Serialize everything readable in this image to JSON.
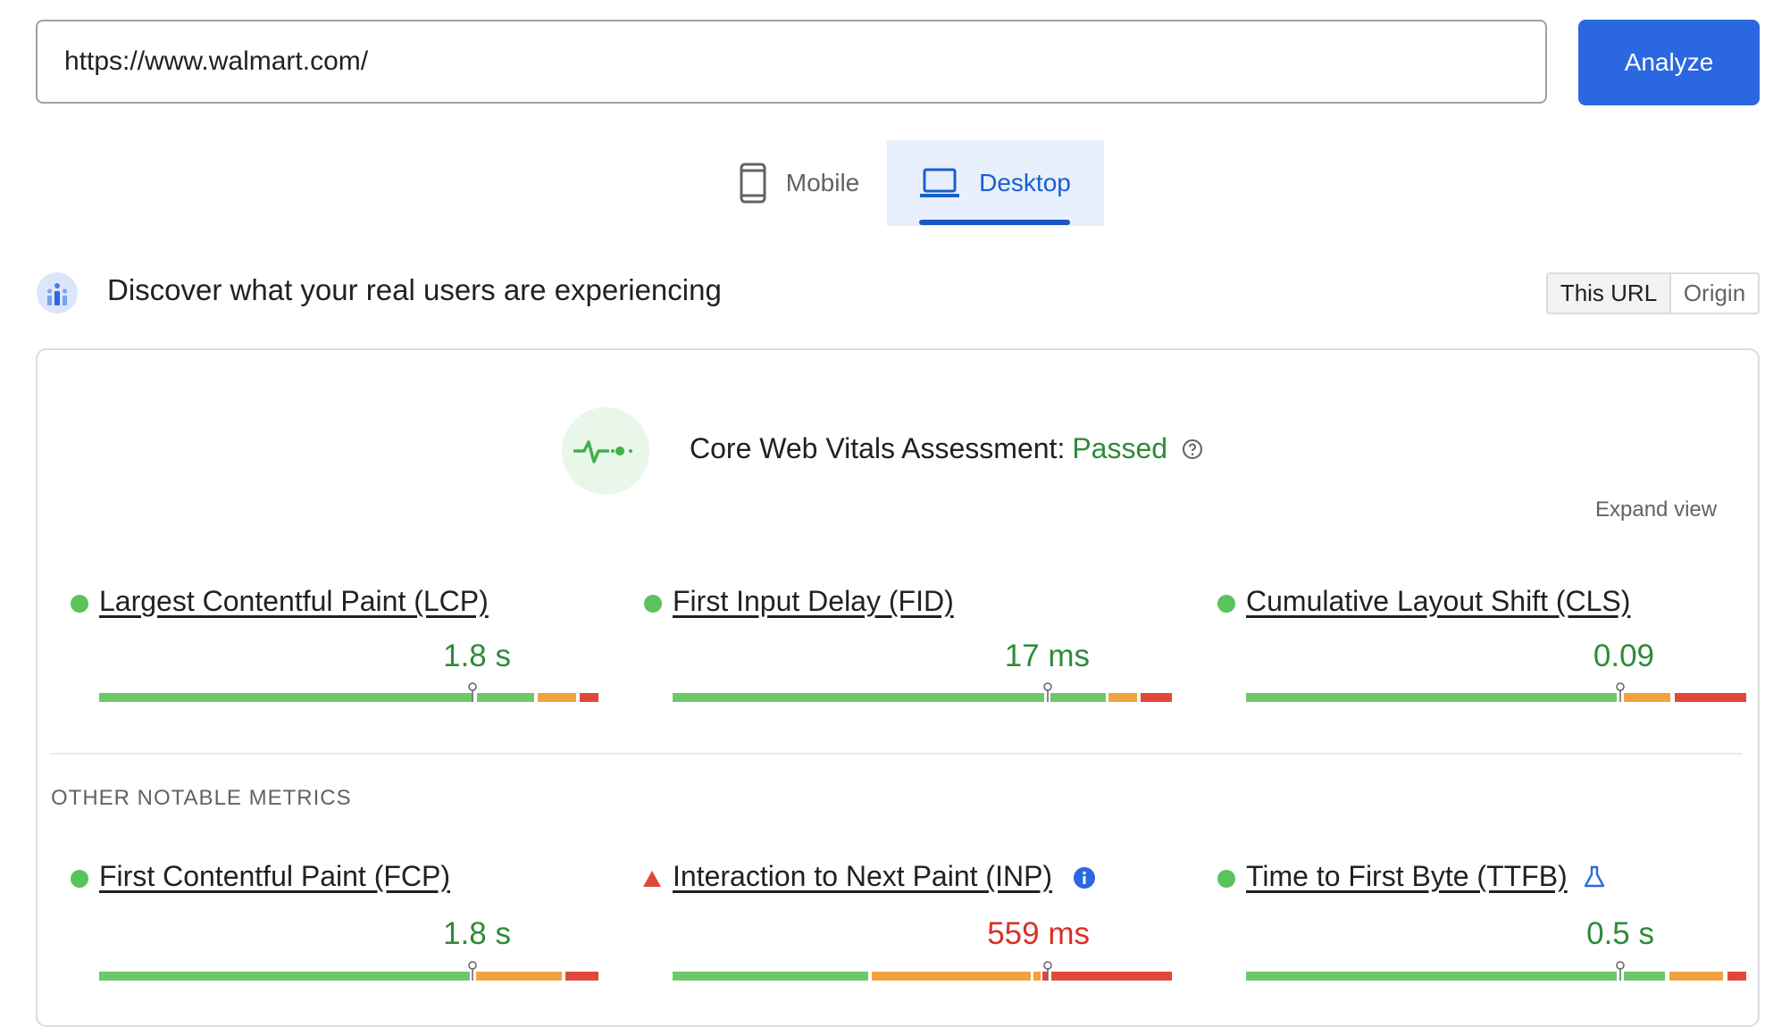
{
  "url_bar": {
    "value": "https://www.walmart.com/",
    "analyze_label": "Analyze"
  },
  "tabs": {
    "mobile": "Mobile",
    "desktop": "Desktop",
    "selected": "Desktop"
  },
  "field_data": {
    "title": "Discover what your real users are experiencing",
    "scope_toggle": {
      "this_url": "This URL",
      "origin": "Origin",
      "selected": "This URL"
    }
  },
  "assessment": {
    "label": "Core Web Vitals Assessment:",
    "status": "Passed",
    "expand_label": "Expand view"
  },
  "core_metrics": [
    {
      "name": "Largest Contentful Paint (LCP)",
      "value": "1.8 s",
      "status": "good"
    },
    {
      "name": "First Input Delay (FID)",
      "value": "17 ms",
      "status": "good"
    },
    {
      "name": "Cumulative Layout Shift (CLS)",
      "value": "0.09",
      "status": "good"
    }
  ],
  "other_label": "OTHER NOTABLE METRICS",
  "other_metrics": [
    {
      "name": "First Contentful Paint (FCP)",
      "value": "1.8 s",
      "status": "good"
    },
    {
      "name": "Interaction to Next Paint (INP)",
      "value": "559 ms",
      "status": "poor",
      "badge": "info-icon"
    },
    {
      "name": "Time to First Byte (TTFB)",
      "value": "0.5 s",
      "status": "good",
      "badge": "experimental-flask-icon"
    }
  ],
  "colors": {
    "good": "#6cc96b",
    "needs_improvement": "#f0a33e",
    "poor": "#e0483b",
    "accent": "#2b67e0",
    "passed_text": "#2e8b3a"
  }
}
